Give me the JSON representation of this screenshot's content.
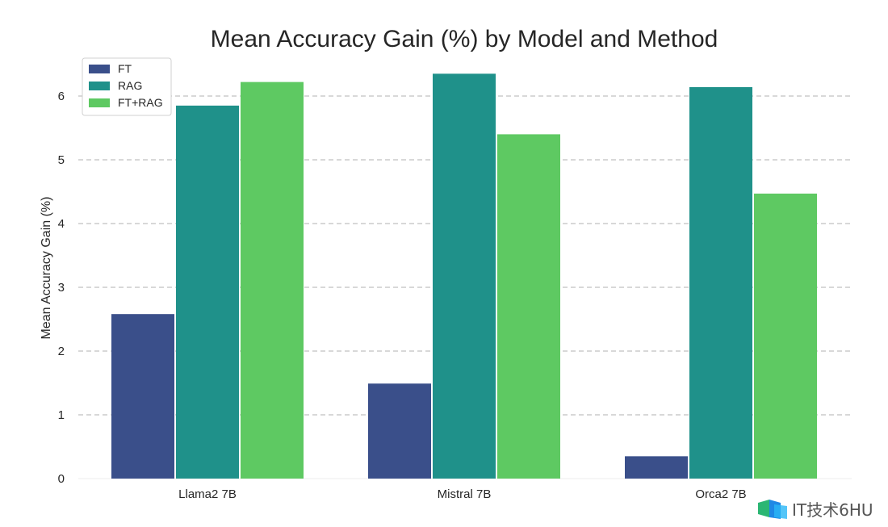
{
  "chart_data": {
    "type": "bar",
    "title": "Mean Accuracy Gain (%) by Model and Method",
    "xlabel": "",
    "ylabel": "Mean Accuracy Gain (%)",
    "categories": [
      "Llama2 7B",
      "Mistral 7B",
      "Orca2 7B"
    ],
    "series": [
      {
        "name": "FT",
        "values": [
          2.58,
          1.49,
          0.35
        ],
        "color": "#3a4f8a"
      },
      {
        "name": "RAG",
        "values": [
          5.85,
          6.35,
          6.14
        ],
        "color": "#1f918a"
      },
      {
        "name": "FT+RAG",
        "values": [
          6.22,
          5.4,
          4.47
        ],
        "color": "#5ec962"
      }
    ],
    "ylim": [
      0,
      6.5
    ],
    "yticks": [
      "0",
      "1",
      "2",
      "3",
      "4",
      "5",
      "6"
    ],
    "grid": "horizontal dashed",
    "legend_position": "top-left"
  },
  "watermark": {
    "text": "IT技术6HU",
    "logo_icon": "watermark-logo-icon"
  }
}
